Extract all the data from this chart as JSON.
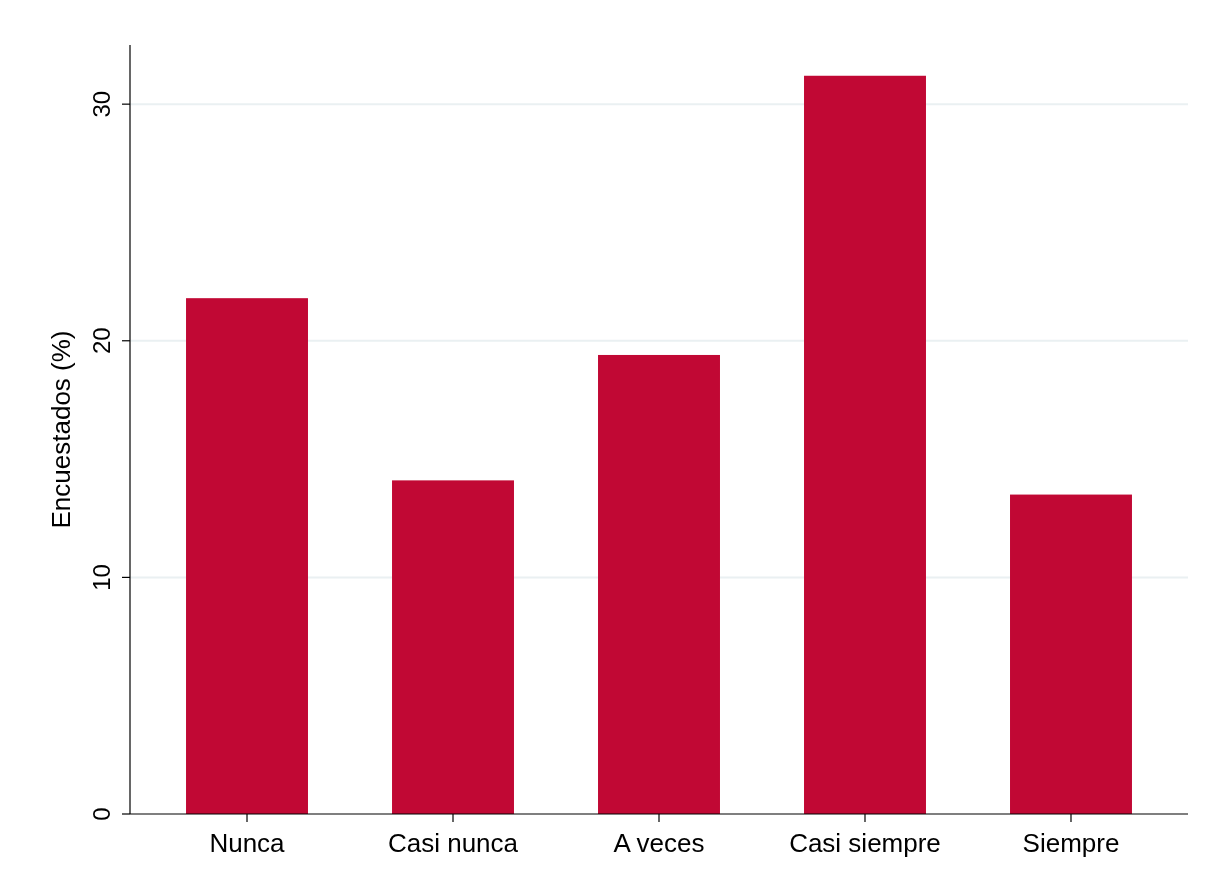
{
  "chart_data": {
    "type": "bar",
    "ylabel": "Encuestados (%)",
    "categories": [
      "Nunca",
      "Casi nunca",
      "A veces",
      "Casi siempre",
      "Siempre"
    ],
    "values": [
      21.8,
      14.1,
      19.4,
      31.2,
      13.5
    ],
    "color": "#c10834",
    "ylim": [
      0,
      32.5
    ],
    "yticks": [
      0,
      10,
      20,
      30
    ],
    "grid": "y"
  }
}
